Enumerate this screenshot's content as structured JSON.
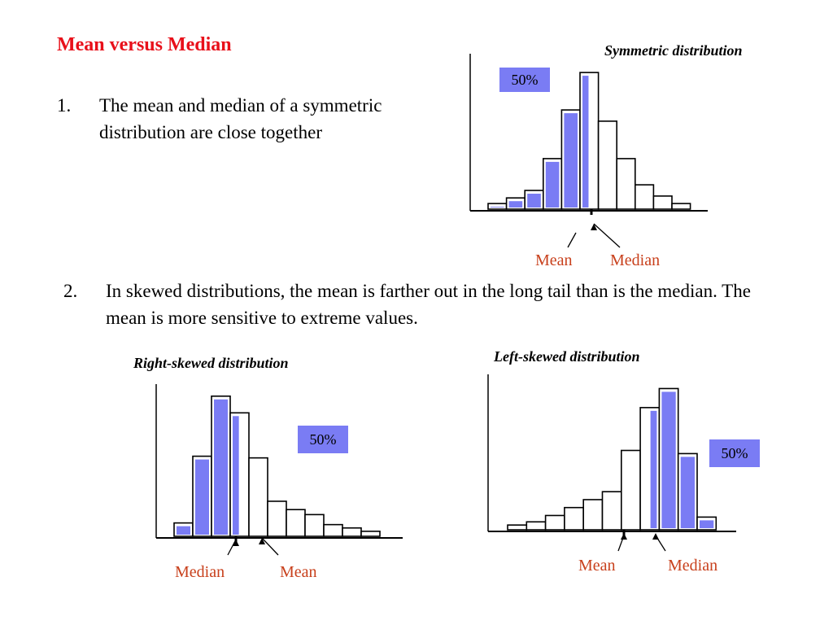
{
  "title": "Mean versus Median",
  "points": [
    {
      "num": "1.",
      "text": "The mean and median of a symmetric distribution are close together"
    },
    {
      "num": "2.",
      "text": "In skewed distributions, the mean is farther out in the long tail than is the median. The mean is more sensitive to extreme values."
    }
  ],
  "colors": {
    "title": "#e8101a",
    "shaded": "#7a7cf4",
    "label": "#c8401c"
  },
  "chart_data": [
    {
      "type": "bar",
      "title": "Symmetric distribution",
      "values": [
        3,
        6,
        10,
        27,
        53,
        73,
        47,
        27,
        13,
        7,
        3
      ],
      "shaded": [
        true,
        true,
        true,
        true,
        true,
        "partial",
        false,
        false,
        false,
        false,
        false
      ],
      "percent_label": "50%",
      "markers": [
        "Mean",
        "Median"
      ]
    },
    {
      "type": "bar",
      "title": "Right-skewed distribution",
      "values": [
        8,
        48,
        84,
        74,
        47,
        21,
        16,
        13,
        7,
        5,
        3
      ],
      "shaded": [
        true,
        true,
        true,
        "partial",
        false,
        false,
        false,
        false,
        false,
        false,
        false
      ],
      "percent_label": "50%",
      "markers": [
        "Median",
        "Mean"
      ]
    },
    {
      "type": "bar",
      "title": "Left-skewed distribution",
      "values": [
        3,
        5,
        9,
        14,
        19,
        24,
        50,
        77,
        89,
        48,
        8
      ],
      "shaded": [
        false,
        false,
        false,
        false,
        false,
        false,
        false,
        "partial",
        true,
        true,
        true
      ],
      "percent_label": "50%",
      "markers": [
        "Mean",
        "Median"
      ]
    }
  ]
}
